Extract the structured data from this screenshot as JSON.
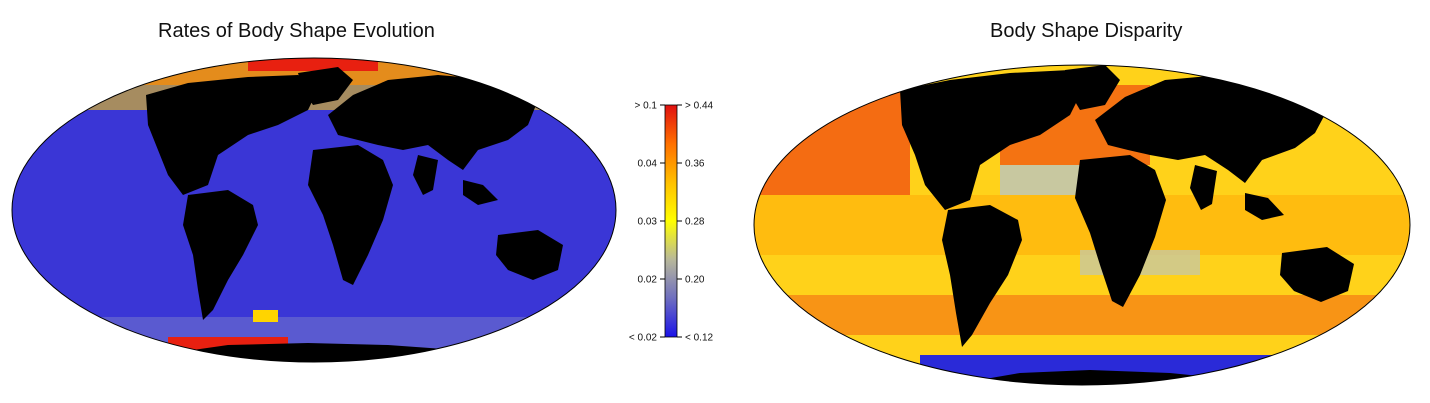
{
  "left_panel": {
    "title": "Rates of Body Shape Evolution",
    "ocean_color": "#3a36d6",
    "continent_color": "#000000",
    "hotspot_colors": [
      "#ffd400",
      "#ff8c00",
      "#e82010"
    ]
  },
  "right_panel": {
    "title": "Body Shape Disparity",
    "ocean_color": "#ffd21a",
    "continent_color": "#000000",
    "hotspot_colors": [
      "#ff9a00",
      "#f04a10",
      "#c8c8a0",
      "#2a2ad8"
    ]
  },
  "legend": {
    "colors": [
      "#1a12e8",
      "#6e6ec0",
      "#b8b89a",
      "#ffff00",
      "#ffc000",
      "#ff7000",
      "#e01010"
    ],
    "left_labels": [
      "> 0.1",
      "0.04",
      "0.03",
      "0.02",
      "< 0.02"
    ],
    "right_labels": [
      "> 0.44",
      "0.36",
      "0.28",
      "0.20",
      "< 0.12"
    ]
  }
}
